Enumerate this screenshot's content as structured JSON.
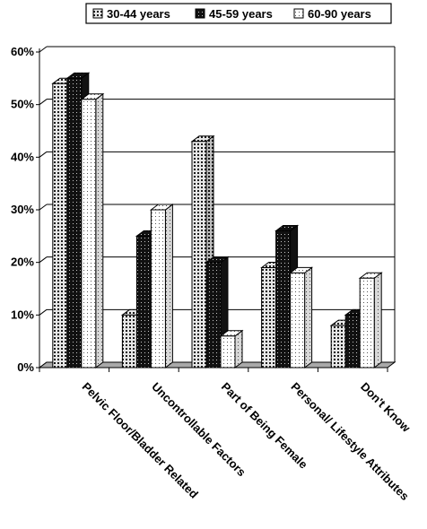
{
  "chart_data": {
    "type": "bar",
    "title": "",
    "xlabel": "",
    "ylabel": "",
    "categories": [
      "Pelvic Floor/Bladder Related",
      "Uncontrollable Factors",
      "Part of Being Female",
      "Personal/ Lifestyle Attributes",
      "Don't Know"
    ],
    "series": [
      {
        "name": "30-44 years",
        "pattern": "dotted-dark-on-light",
        "values": [
          54,
          10,
          43,
          19,
          8
        ]
      },
      {
        "name": "45-59 years",
        "pattern": "dotted-light-on-dark",
        "values": [
          55,
          25,
          20,
          26,
          10
        ]
      },
      {
        "name": "60-90 years",
        "pattern": "dotted-sparse-on-white",
        "values": [
          51,
          30,
          6,
          18,
          17
        ]
      }
    ],
    "ylim": [
      0,
      60
    ],
    "yticks": [
      0,
      10,
      20,
      30,
      40,
      50,
      60
    ],
    "ytick_labels": [
      "0%",
      "10%",
      "20%",
      "30%",
      "40%",
      "50%",
      "60%"
    ],
    "grid": true,
    "legend_position": "top-right",
    "style": "3d-bars",
    "colors": {
      "floor": "#a9a9a9",
      "side": "#8a8a8a",
      "edge": "#000000",
      "dark": "#111111"
    }
  }
}
